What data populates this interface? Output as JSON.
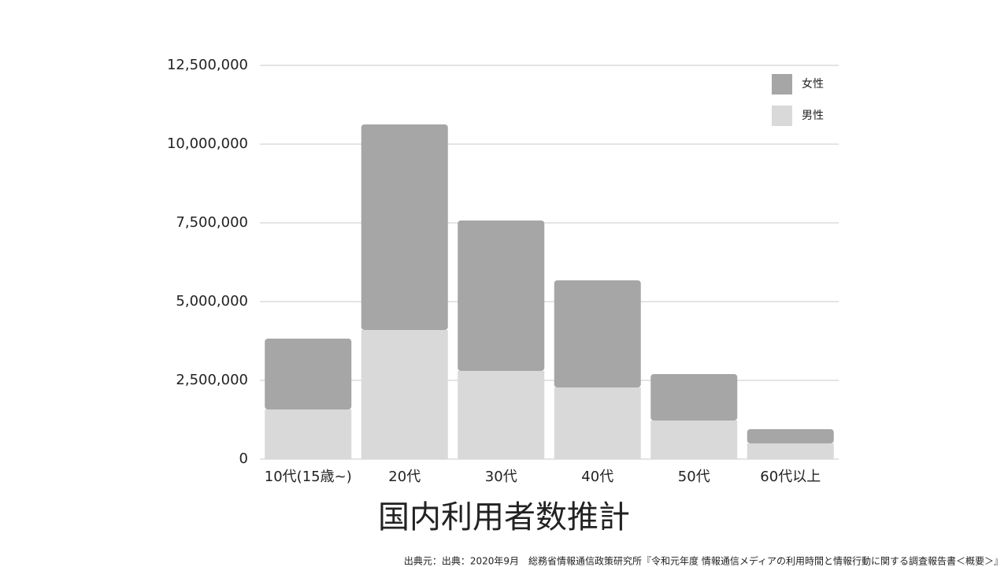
{
  "chart_data": {
    "type": "stacked_bar",
    "title": "国内利用者数推計",
    "caption": "出典元：出典：2020年9月　総務省情報通信政策研究所『令和元年度 情報通信メディアの利用時間と情報行動に関する調査報告書＜概要＞』",
    "categories": [
      "10代(15歳~)",
      "20代",
      "30代",
      "40代",
      "50代",
      "60代以上"
    ],
    "series": [
      {
        "name": "男性",
        "color": "#d9d9d9",
        "values": [
          1575000,
          4100000,
          2800000,
          2275000,
          1225000,
          500000
        ]
      },
      {
        "name": "女性",
        "color": "#a6a6a6",
        "values": [
          2250000,
          6525000,
          4775000,
          3400000,
          1475000,
          450000
        ]
      }
    ],
    "ylim": [
      0,
      12500000
    ],
    "yticks": [
      0,
      {
        "value": 2500000,
        "label": "2,500,000"
      },
      {
        "value": 5000000,
        "label": "5,000,000"
      },
      {
        "value": 7500000,
        "label": "7,500,000"
      },
      {
        "value": 10000000,
        "label": "10,000,000"
      },
      {
        "value": 12500000,
        "label": "12,500,000"
      }
    ],
    "grid": true,
    "legend": "top-right"
  }
}
